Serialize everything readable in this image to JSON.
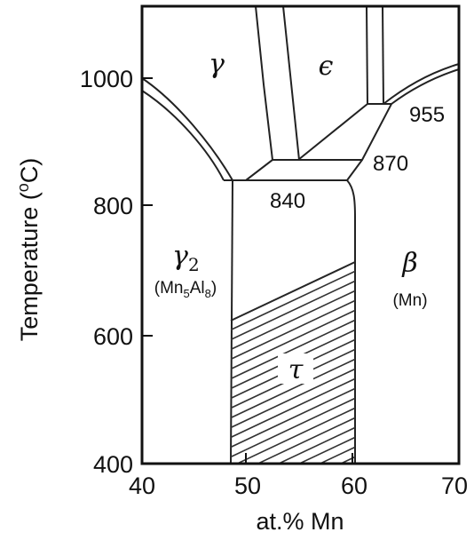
{
  "axes": {
    "x_label": "at.% Mn",
    "y_label_main": "Temperature (",
    "y_label_sup": "o",
    "y_label_end": "C)",
    "x_ticks": [
      "40",
      "50",
      "60",
      "70"
    ],
    "y_ticks": [
      "1000",
      "800",
      "600",
      "400"
    ],
    "x_range": [
      40,
      70
    ],
    "y_range": [
      400,
      1000
    ]
  },
  "phases": {
    "gamma": "γ",
    "epsilon": "ϵ",
    "beta": "β",
    "tau": "τ",
    "gamma2_main": "γ",
    "gamma2_sub": "2",
    "gamma2_formula": {
      "a": "(Mn",
      "b": "5",
      "c": "Al",
      "d": "8",
      "e": ")"
    },
    "beta_formula": "(Mn)"
  },
  "temperatures": {
    "t955": "955",
    "t870": "870",
    "t840": "840"
  },
  "colors": {
    "line": "#222222",
    "background": "#ffffff"
  }
}
